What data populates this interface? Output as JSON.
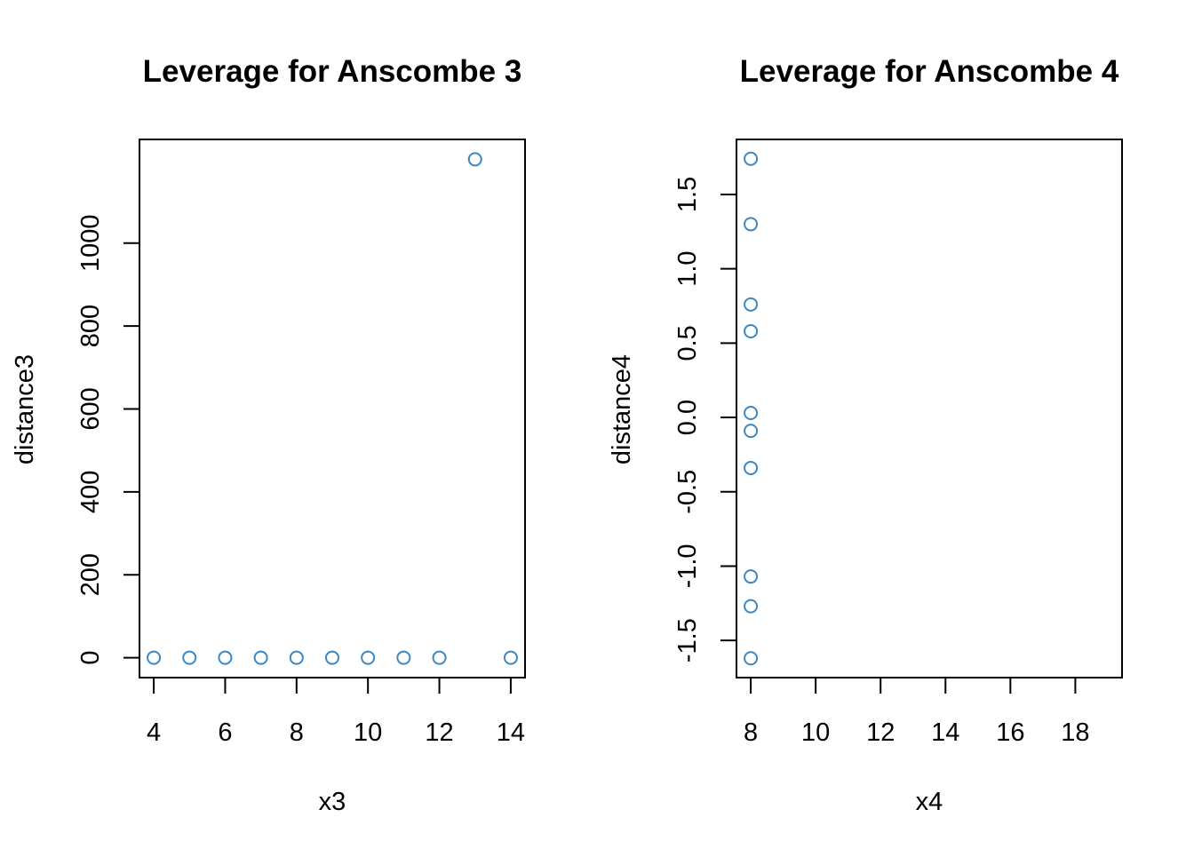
{
  "colors": {
    "point": "#3a87c4",
    "axis": "#000000",
    "background": "#ffffff"
  },
  "chart_data": [
    {
      "type": "scatter",
      "title": "Leverage for Anscombe 3",
      "xlabel": "x3",
      "ylabel": "distance3",
      "xlim": [
        3.6,
        14.4
      ],
      "ylim": [
        -48,
        1250
      ],
      "xticks": [
        4,
        6,
        8,
        10,
        12,
        14
      ],
      "xtick_labels": [
        "4",
        "6",
        "8",
        "10",
        "12",
        "14"
      ],
      "yticks": [
        0,
        200,
        400,
        600,
        800,
        1000
      ],
      "ytick_labels": [
        "0",
        "200",
        "400",
        "600",
        "800",
        "1000"
      ],
      "grid": false,
      "marker": "open-circle",
      "x": [
        4,
        5,
        6,
        7,
        8,
        9,
        10,
        11,
        12,
        13,
        14
      ],
      "y": [
        0,
        0,
        0,
        0,
        0,
        0,
        0,
        0,
        0,
        1202,
        0
      ]
    },
    {
      "type": "scatter",
      "title": "Leverage for Anscombe 4",
      "xlabel": "x4",
      "ylabel": "distance4",
      "xlim": [
        7.56,
        19.44
      ],
      "ylim": [
        -1.75,
        1.87
      ],
      "xticks": [
        8,
        10,
        12,
        14,
        16,
        18
      ],
      "xtick_labels": [
        "8",
        "10",
        "12",
        "14",
        "16",
        "18"
      ],
      "yticks": [
        -1.5,
        -1.0,
        -0.5,
        0.0,
        0.5,
        1.0,
        1.5
      ],
      "ytick_labels": [
        "-1.5",
        "-1.0",
        "-0.5",
        "0.0",
        "0.5",
        "1.0",
        "1.5"
      ],
      "grid": false,
      "marker": "open-circle",
      "x": [
        8,
        8,
        8,
        8,
        8,
        8,
        8,
        8,
        8,
        8
      ],
      "y": [
        1.74,
        1.3,
        0.76,
        0.58,
        0.03,
        -0.09,
        -0.34,
        -1.07,
        -1.27,
        -1.62
      ]
    }
  ]
}
